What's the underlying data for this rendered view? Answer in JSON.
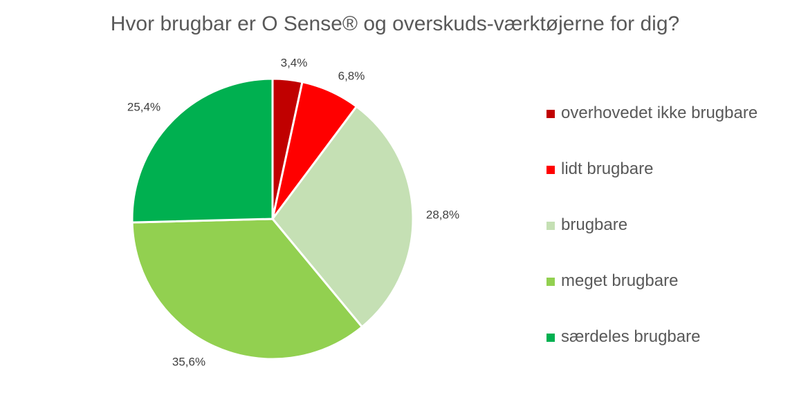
{
  "chart_data": {
    "type": "pie",
    "title": "Hvor brugbar er O Sense® og overskuds-værktøjerne for dig?",
    "slices": [
      {
        "label": "overhovedet ikke brugbare",
        "value": 3.4,
        "display": "3,4%",
        "color": "#C00000"
      },
      {
        "label": "lidt brugbare",
        "value": 6.8,
        "display": "6,8%",
        "color": "#FF0000"
      },
      {
        "label": "brugbare",
        "value": 28.8,
        "display": "28,8%",
        "color": "#C5E0B4"
      },
      {
        "label": "meget brugbare",
        "value": 35.6,
        "display": "35,6%",
        "color": "#92D050"
      },
      {
        "label": "særdeles brugbare",
        "value": 25.4,
        "display": "25,4%",
        "color": "#00B050"
      }
    ],
    "legend_position": "right"
  }
}
